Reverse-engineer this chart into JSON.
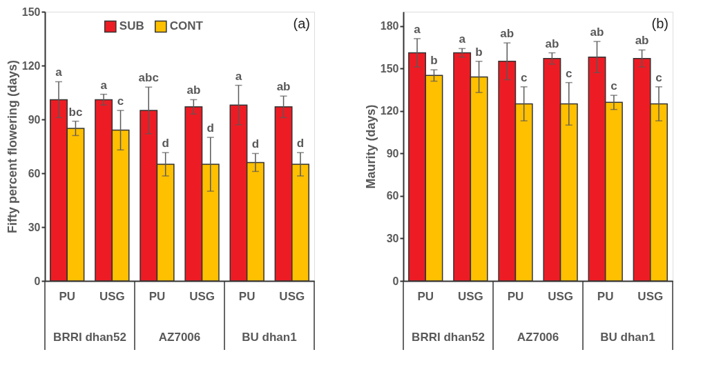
{
  "chart_data": [
    {
      "type": "bar",
      "title": "(a)",
      "ylabel": "Fifty percent flowering (days)",
      "categories": [
        "PU",
        "USG",
        "PU",
        "USG",
        "PU",
        "USG"
      ],
      "annotations": [
        "BRRI dhan52",
        "AZ7006",
        "BU dhan1"
      ],
      "ylim": [
        0,
        150
      ],
      "yticks": [
        0,
        30,
        60,
        90,
        120,
        150
      ],
      "legend": "top",
      "series": [
        {
          "name": "SUB",
          "color": "#ed1c24",
          "values": [
            101,
            101,
            95,
            97,
            98,
            97
          ],
          "errors": [
            10,
            3,
            13,
            4,
            11,
            6
          ],
          "value_labels": [
            "a",
            "a",
            "abc",
            "ab",
            "a",
            "ab"
          ]
        },
        {
          "name": "CONT",
          "color": "#ffc000",
          "values": [
            85,
            84,
            65,
            65,
            66,
            65
          ],
          "errors": [
            4,
            11,
            6.5,
            15,
            5,
            6.5
          ],
          "value_labels": [
            "bc",
            "c",
            "d",
            "d",
            "d",
            "d"
          ]
        }
      ]
    },
    {
      "type": "bar",
      "title": "(b)",
      "ylabel": "Maurity (days)",
      "categories": [
        "PU",
        "USG",
        "PU",
        "USG",
        "PU",
        "USG"
      ],
      "annotations": [
        "BRRI dhan52",
        "AZ7006",
        "BU dhan1"
      ],
      "ylim": [
        0,
        190
      ],
      "yticks": [
        0,
        30,
        60,
        90,
        120,
        150,
        180
      ],
      "series": [
        {
          "name": "SUB",
          "color": "#ed1c24",
          "values": [
            161,
            161,
            155,
            157,
            158,
            157
          ],
          "errors": [
            10,
            3,
            13,
            4,
            11,
            6
          ],
          "value_labels": [
            "a",
            "a",
            "ab",
            "ab",
            "ab",
            "ab"
          ]
        },
        {
          "name": "CONT",
          "color": "#ffc000",
          "values": [
            145,
            144,
            125,
            125,
            126,
            125
          ],
          "errors": [
            4,
            11,
            12,
            15,
            5,
            12
          ],
          "value_labels": [
            "b",
            "b",
            "c",
            "c",
            "c",
            "c"
          ]
        }
      ]
    }
  ]
}
